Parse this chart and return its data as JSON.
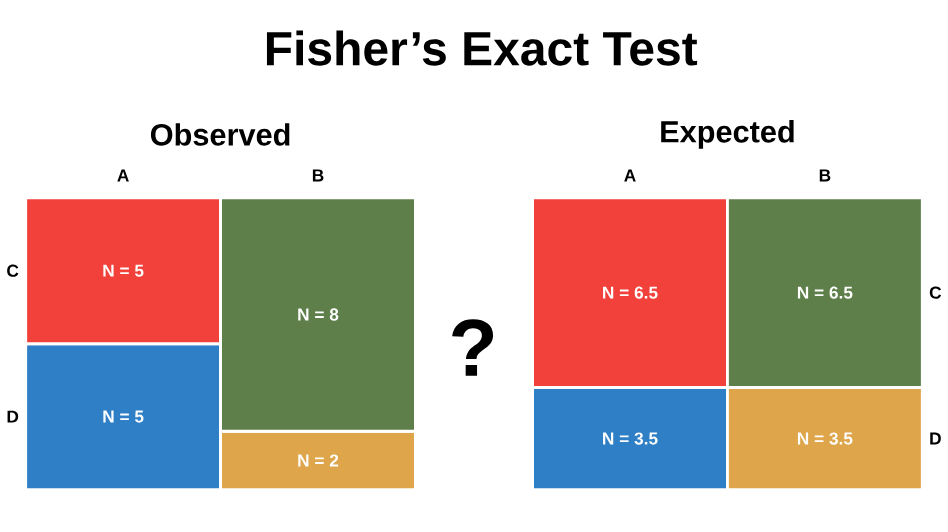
{
  "chart_data": [
    {
      "type": "bar",
      "title": "Fisher’s Exact Test",
      "subtitle": "Observed",
      "categories": [
        "A",
        "B"
      ],
      "stacked": true,
      "annotations": [
        "?"
      ],
      "series": [
        {
          "name": "D",
          "colors": [
            "#2e7fc6",
            "#dea54a"
          ],
          "values": [
            5,
            2
          ],
          "value_labels": [
            "N = 5",
            "N = 2"
          ]
        },
        {
          "name": "C",
          "colors": [
            "#f2413a",
            "#5e7f4a"
          ],
          "values": [
            5,
            8
          ],
          "value_labels": [
            "N = 5",
            "N = 8"
          ]
        }
      ]
    },
    {
      "type": "bar",
      "subtitle": "Expected",
      "categories": [
        "A",
        "B"
      ],
      "stacked": true,
      "series": [
        {
          "name": "D",
          "colors": [
            "#2e7fc6",
            "#dea54a"
          ],
          "values": [
            3.5,
            3.5
          ],
          "value_labels": [
            "N = 3.5",
            "N = 3.5"
          ]
        },
        {
          "name": "C",
          "colors": [
            "#f2413a",
            "#5e7f4a"
          ],
          "values": [
            6.5,
            6.5
          ],
          "value_labels": [
            "N = 6.5",
            "N = 6.5"
          ]
        }
      ]
    }
  ]
}
